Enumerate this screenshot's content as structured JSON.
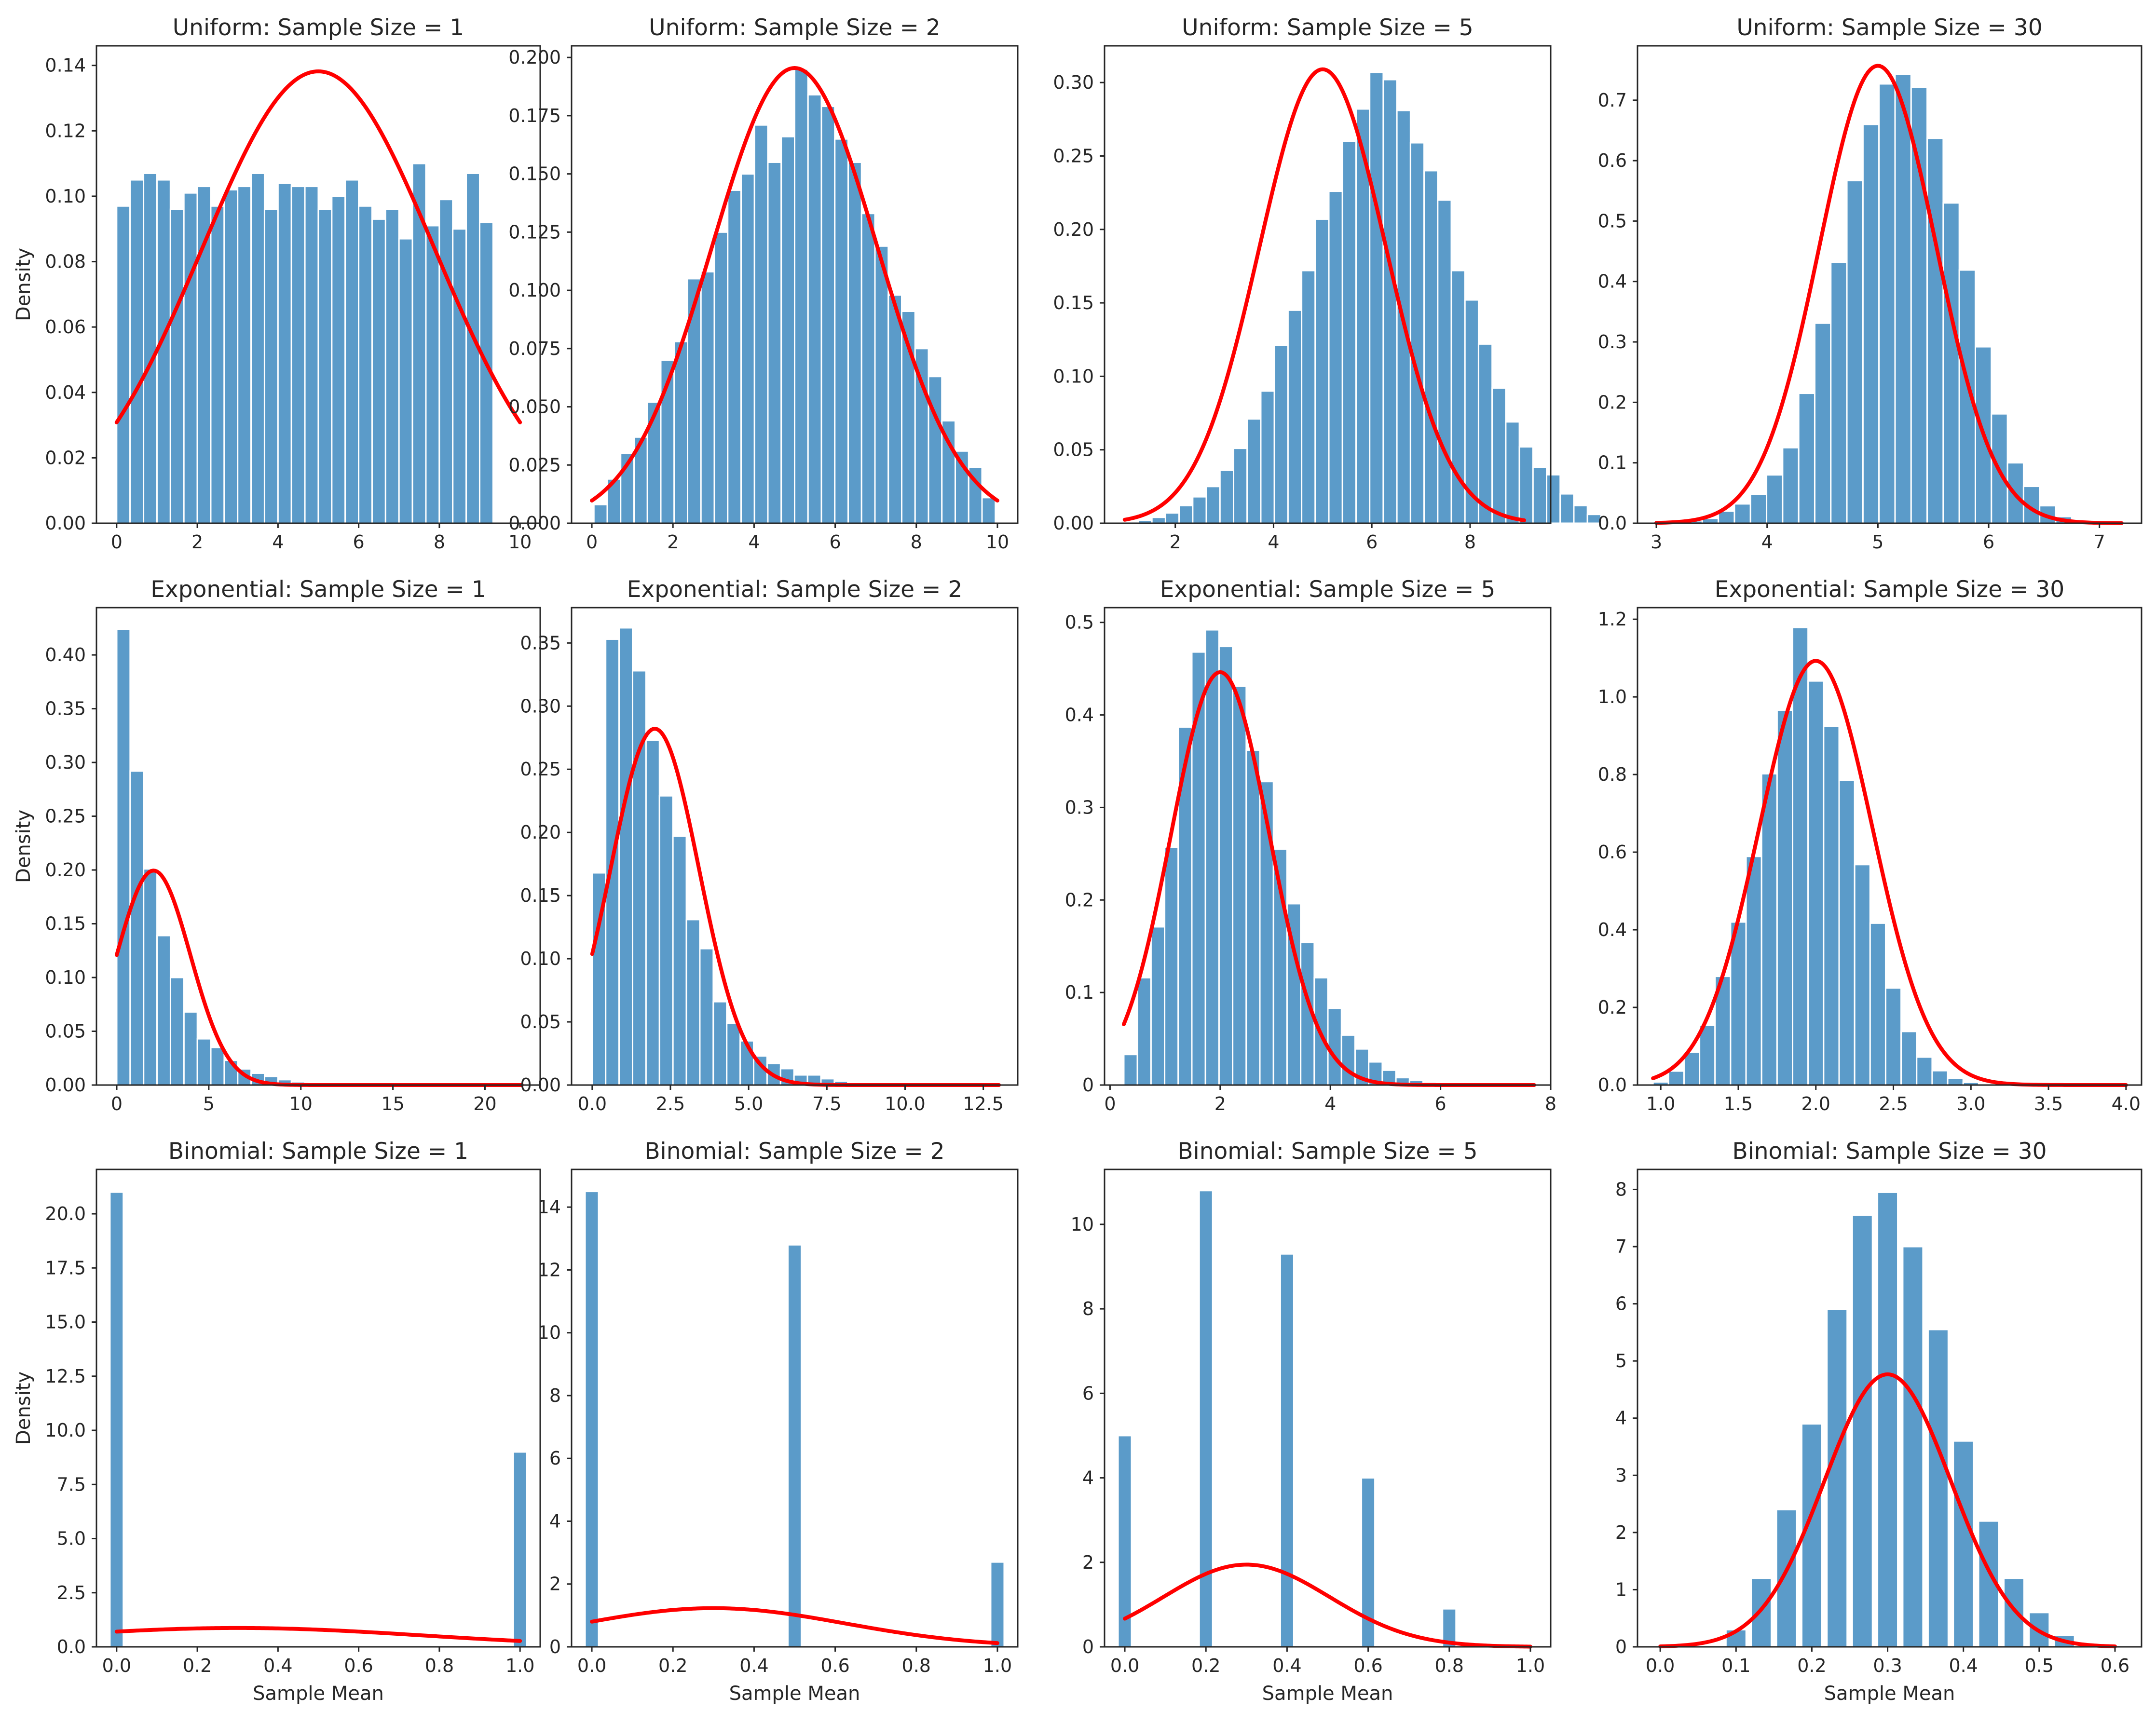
{
  "colors": {
    "bar": "#5b9bc9",
    "curve": "#ff0000",
    "frame": "#262626",
    "background": "#ffffff"
  },
  "chart_data": [
    {
      "type": "bar",
      "title": "Uniform: Sample Size = 1",
      "xlabel": "",
      "ylabel": "Density",
      "xlim": [
        -0.5,
        10.5
      ],
      "ylim": [
        0,
        0.146
      ],
      "xticks": [
        0,
        2,
        4,
        6,
        8,
        10
      ],
      "xtick_labels": [
        "0",
        "2",
        "4",
        "6",
        "8",
        "10"
      ],
      "yticks": [
        0,
        0.02,
        0.04,
        0.06,
        0.08,
        0.1,
        0.12,
        0.14
      ],
      "ytick_labels": [
        "0.00",
        "0.02",
        "0.04",
        "0.06",
        "0.08",
        "0.10",
        "0.12",
        "0.14"
      ],
      "bins": {
        "start": 0,
        "width": 0.3333,
        "values": [
          0.097,
          0.105,
          0.107,
          0.105,
          0.096,
          0.101,
          0.103,
          0.097,
          0.102,
          0.103,
          0.107,
          0.096,
          0.104,
          0.103,
          0.103,
          0.096,
          0.1,
          0.105,
          0.097,
          0.093,
          0.096,
          0.087,
          0.11,
          0.091,
          0.099,
          0.09,
          0.107,
          0.092
        ]
      },
      "normal_curve": {
        "mean": 5,
        "sd": 2.887,
        "x_range": [
          0,
          10
        ]
      }
    },
    {
      "type": "bar",
      "title": "Uniform: Sample Size = 2",
      "xlabel": "",
      "ylabel": "",
      "xlim": [
        -0.5,
        10.5
      ],
      "ylim": [
        0,
        0.205
      ],
      "xticks": [
        0,
        2,
        4,
        6,
        8,
        10
      ],
      "xtick_labels": [
        "0",
        "2",
        "4",
        "6",
        "8",
        "10"
      ],
      "yticks": [
        0,
        0.025,
        0.05,
        0.075,
        0.1,
        0.125,
        0.15,
        0.175,
        0.2
      ],
      "ytick_labels": [
        "0.000",
        "0.025",
        "0.050",
        "0.075",
        "0.100",
        "0.125",
        "0.150",
        "0.175",
        "0.200"
      ],
      "bins": {
        "start": 0.05,
        "width": 0.33,
        "values": [
          0.008,
          0.019,
          0.03,
          0.037,
          0.052,
          0.07,
          0.078,
          0.105,
          0.108,
          0.125,
          0.143,
          0.15,
          0.171,
          0.155,
          0.166,
          0.195,
          0.184,
          0.179,
          0.165,
          0.155,
          0.133,
          0.119,
          0.098,
          0.091,
          0.075,
          0.063,
          0.044,
          0.031,
          0.024,
          0.011
        ]
      },
      "normal_curve": {
        "mean": 5,
        "sd": 2.041,
        "x_range": [
          0,
          10
        ]
      }
    },
    {
      "type": "bar",
      "title": "Uniform: Sample Size = 5",
      "xlabel": "",
      "ylabel": "",
      "xlim": [
        0.56,
        9.64
      ],
      "ylim": [
        0,
        0.325
      ],
      "xticks": [
        2,
        4,
        6,
        8
      ],
      "xtick_labels": [
        "2",
        "4",
        "6",
        "8"
      ],
      "yticks": [
        0,
        0.05,
        0.1,
        0.15,
        0.2,
        0.25,
        0.3
      ],
      "ytick_labels": [
        "0.00",
        "0.05",
        "0.10",
        "0.15",
        "0.20",
        "0.25",
        "0.30"
      ],
      "bins": {
        "start": 0.97,
        "width": 0.277,
        "values": [
          0.001,
          0.002,
          0.004,
          0.007,
          0.012,
          0.018,
          0.025,
          0.036,
          0.051,
          0.071,
          0.09,
          0.121,
          0.145,
          0.172,
          0.207,
          0.226,
          0.26,
          0.282,
          0.307,
          0.302,
          0.281,
          0.259,
          0.24,
          0.22,
          0.172,
          0.152,
          0.122,
          0.092,
          0.069,
          0.052,
          0.038,
          0.033,
          0.02,
          0.012,
          0.006
        ]
      },
      "normal_curve": {
        "mean": 5,
        "sd": 1.291,
        "x_range": [
          0.97,
          9.1
        ]
      }
    },
    {
      "type": "bar",
      "title": "Uniform: Sample Size = 30",
      "xlabel": "",
      "ylabel": "",
      "xlim": [
        2.83,
        7.38
      ],
      "ylim": [
        0,
        0.79
      ],
      "xticks": [
        3,
        4,
        5,
        6,
        7
      ],
      "xtick_labels": [
        "3",
        "4",
        "5",
        "6",
        "7"
      ],
      "yticks": [
        0,
        0.1,
        0.2,
        0.3,
        0.4,
        0.5,
        0.6,
        0.7
      ],
      "ytick_labels": [
        "0.0",
        "0.1",
        "0.2",
        "0.3",
        "0.4",
        "0.5",
        "0.6",
        "0.7"
      ],
      "bins": {
        "start": 2.98,
        "width": 0.145,
        "values": [
          0.001,
          0.002,
          0.004,
          0.008,
          0.02,
          0.032,
          0.048,
          0.08,
          0.125,
          0.215,
          0.331,
          0.432,
          0.567,
          0.66,
          0.727,
          0.743,
          0.721,
          0.637,
          0.53,
          0.419,
          0.292,
          0.181,
          0.1,
          0.061,
          0.029,
          0.011,
          0.005,
          0.002,
          0.001,
          0.0
        ]
      },
      "normal_curve": {
        "mean": 5,
        "sd": 0.527,
        "x_range": [
          3.0,
          7.2
        ]
      }
    },
    {
      "type": "bar",
      "title": "Exponential: Sample Size = 1",
      "xlabel": "",
      "ylabel": "Density",
      "xlim": [
        -1.1,
        23.0
      ],
      "ylim": [
        0,
        0.444
      ],
      "xticks": [
        0,
        5,
        10,
        15,
        20
      ],
      "xtick_labels": [
        "0",
        "5",
        "10",
        "15",
        "20"
      ],
      "yticks": [
        0,
        0.05,
        0.1,
        0.15,
        0.2,
        0.25,
        0.3,
        0.35,
        0.4
      ],
      "ytick_labels": [
        "0.00",
        "0.05",
        "0.10",
        "0.15",
        "0.20",
        "0.25",
        "0.30",
        "0.35",
        "0.40"
      ],
      "bins": {
        "start": 0,
        "width": 0.73,
        "values": [
          0.424,
          0.292,
          0.201,
          0.139,
          0.1,
          0.068,
          0.043,
          0.035,
          0.023,
          0.015,
          0.011,
          0.008,
          0.005,
          0.003,
          0.002,
          0.001,
          0.001,
          0.001,
          0.0,
          0.0,
          0.0,
          0.0,
          0.0,
          0.0,
          0.0,
          0.0,
          0.0,
          0.0,
          0.0,
          0.0
        ]
      },
      "normal_curve": {
        "mean": 2,
        "sd": 2,
        "x_range": [
          0,
          22
        ]
      }
    },
    {
      "type": "bar",
      "title": "Exponential: Sample Size = 2",
      "xlabel": "",
      "ylabel": "",
      "xlim": [
        -0.66,
        13.6
      ],
      "ylim": [
        0,
        0.378
      ],
      "xticks": [
        0,
        2.5,
        5,
        7.5,
        10,
        12.5
      ],
      "xtick_labels": [
        "0.0",
        "2.5",
        "5.0",
        "7.5",
        "10.0",
        "12.5"
      ],
      "yticks": [
        0,
        0.05,
        0.1,
        0.15,
        0.2,
        0.25,
        0.3,
        0.35
      ],
      "ytick_labels": [
        "0.00",
        "0.05",
        "0.10",
        "0.15",
        "0.20",
        "0.25",
        "0.30",
        "0.35"
      ],
      "bins": {
        "start": 0,
        "width": 0.43,
        "values": [
          0.168,
          0.353,
          0.362,
          0.328,
          0.273,
          0.229,
          0.197,
          0.131,
          0.108,
          0.066,
          0.049,
          0.035,
          0.023,
          0.017,
          0.013,
          0.008,
          0.008,
          0.005,
          0.003,
          0.002,
          0.002,
          0.001,
          0.001,
          0.001,
          0.0,
          0.0,
          0.0,
          0.0,
          0.0,
          0.0
        ]
      },
      "normal_curve": {
        "mean": 2,
        "sd": 1.414,
        "x_range": [
          0,
          13
        ]
      }
    },
    {
      "type": "bar",
      "title": "Exponential: Sample Size = 5",
      "xlabel": "",
      "ylabel": "",
      "xlim": [
        -0.1,
        8.0
      ],
      "ylim": [
        0,
        0.516
      ],
      "xticks": [
        0,
        2,
        4,
        6,
        8
      ],
      "xtick_labels": [
        "0",
        "2",
        "4",
        "6",
        "8"
      ],
      "yticks": [
        0,
        0.1,
        0.2,
        0.3,
        0.4,
        0.5
      ],
      "ytick_labels": [
        "0",
        "0.1",
        "0.2",
        "0.3",
        "0.4",
        "0.5"
      ],
      "bins": {
        "start": 0.25,
        "width": 0.247,
        "values": [
          0.033,
          0.116,
          0.171,
          0.257,
          0.387,
          0.468,
          0.492,
          0.474,
          0.431,
          0.362,
          0.328,
          0.255,
          0.196,
          0.154,
          0.116,
          0.083,
          0.054,
          0.039,
          0.025,
          0.016,
          0.008,
          0.005,
          0.003,
          0.002,
          0.001,
          0.0,
          0.0,
          0.0,
          0.0,
          0.0
        ]
      },
      "normal_curve": {
        "mean": 2,
        "sd": 0.894,
        "x_range": [
          0.25,
          7.7
        ]
      }
    },
    {
      "type": "bar",
      "title": "Exponential: Sample Size = 30",
      "xlabel": "",
      "ylabel": "",
      "xlim": [
        0.85,
        4.1
      ],
      "ylim": [
        0,
        1.23
      ],
      "xticks": [
        1,
        1.5,
        2,
        2.5,
        3,
        3.5,
        4
      ],
      "xtick_labels": [
        "1.0",
        "1.5",
        "2.0",
        "2.5",
        "3.0",
        "3.5",
        "4.0"
      ],
      "yticks": [
        0,
        0.2,
        0.4,
        0.6,
        0.8,
        1.0,
        1.2
      ],
      "ytick_labels": [
        "0.0",
        "0.2",
        "0.4",
        "0.6",
        "0.8",
        "1.0",
        "1.2"
      ],
      "bins": {
        "start": 0.95,
        "width": 0.1,
        "values": [
          0.008,
          0.036,
          0.085,
          0.154,
          0.28,
          0.42,
          0.589,
          0.802,
          0.966,
          1.179,
          1.041,
          0.924,
          0.785,
          0.568,
          0.417,
          0.25,
          0.138,
          0.072,
          0.037,
          0.017,
          0.007,
          0.003,
          0.002,
          0.001,
          0.0,
          0.0,
          0.0,
          0.0,
          0.0,
          0.0
        ]
      },
      "normal_curve": {
        "mean": 2,
        "sd": 0.365,
        "x_range": [
          0.95,
          4.0
        ]
      }
    },
    {
      "type": "bar",
      "title": "Binomial: Sample Size = 1",
      "xlabel": "Sample Mean",
      "ylabel": "Density",
      "xlim": [
        -0.05,
        1.05
      ],
      "ylim": [
        0,
        22.05
      ],
      "xticks": [
        0,
        0.2,
        0.4,
        0.6,
        0.8,
        1.0
      ],
      "xtick_labels": [
        "0.0",
        "0.2",
        "0.4",
        "0.6",
        "0.8",
        "1.0"
      ],
      "yticks": [
        0,
        2.5,
        5,
        7.5,
        10,
        12.5,
        15,
        17.5,
        20
      ],
      "ytick_labels": [
        "0.0",
        "2.5",
        "5.0",
        "7.5",
        "10.0",
        "12.5",
        "15.0",
        "17.5",
        "20.0"
      ],
      "bars": [
        {
          "x": 0.0,
          "value": 21.0
        },
        {
          "x": 1.0,
          "value": 9.0
        }
      ],
      "bar_width": 0.0333,
      "normal_curve": {
        "mean": 0.3,
        "sd": 0.458,
        "x_range": [
          0,
          1
        ]
      }
    },
    {
      "type": "bar",
      "title": "Binomial: Sample Size = 2",
      "xlabel": "Sample Mean",
      "ylabel": "",
      "xlim": [
        -0.05,
        1.05
      ],
      "ylim": [
        0,
        15.2
      ],
      "xticks": [
        0,
        0.2,
        0.4,
        0.6,
        0.8,
        1.0
      ],
      "xtick_labels": [
        "0.0",
        "0.2",
        "0.4",
        "0.6",
        "0.8",
        "1.0"
      ],
      "yticks": [
        0,
        2,
        4,
        6,
        8,
        10,
        12,
        14
      ],
      "ytick_labels": [
        "0",
        "2",
        "4",
        "6",
        "8",
        "10",
        "12",
        "14"
      ],
      "bars": [
        {
          "x": 0.0,
          "value": 14.5
        },
        {
          "x": 0.5,
          "value": 12.8
        },
        {
          "x": 1.0,
          "value": 2.7
        }
      ],
      "bar_width": 0.0333,
      "normal_curve": {
        "mean": 0.3,
        "sd": 0.324,
        "x_range": [
          0,
          1
        ]
      }
    },
    {
      "type": "bar",
      "title": "Binomial: Sample Size = 5",
      "xlabel": "Sample Mean",
      "ylabel": "",
      "xlim": [
        -0.05,
        1.05
      ],
      "ylim": [
        0,
        11.3
      ],
      "xticks": [
        0,
        0.2,
        0.4,
        0.6,
        0.8,
        1.0
      ],
      "xtick_labels": [
        "0.0",
        "0.2",
        "0.4",
        "0.6",
        "0.8",
        "1.0"
      ],
      "yticks": [
        0,
        2,
        4,
        6,
        8,
        10
      ],
      "ytick_labels": [
        "0",
        "2",
        "4",
        "6",
        "8",
        "10"
      ],
      "bars": [
        {
          "x": 0.0,
          "value": 5.0
        },
        {
          "x": 0.2,
          "value": 10.8
        },
        {
          "x": 0.4,
          "value": 9.3
        },
        {
          "x": 0.6,
          "value": 4.0
        },
        {
          "x": 0.8,
          "value": 0.9
        }
      ],
      "bar_width": 0.0333,
      "normal_curve": {
        "mean": 0.3,
        "sd": 0.205,
        "x_range": [
          0,
          1
        ]
      }
    },
    {
      "type": "bar",
      "title": "Binomial: Sample Size = 30",
      "xlabel": "Sample Mean",
      "ylabel": "",
      "xlim": [
        -0.03,
        0.635
      ],
      "ylim": [
        0,
        8.35
      ],
      "xticks": [
        0,
        0.1,
        0.2,
        0.3,
        0.4,
        0.5,
        0.6
      ],
      "xtick_labels": [
        "0.0",
        "0.1",
        "0.2",
        "0.3",
        "0.4",
        "0.5",
        "0.6"
      ],
      "yticks": [
        0,
        1,
        2,
        3,
        4,
        5,
        6,
        7,
        8
      ],
      "ytick_labels": [
        "0",
        "1",
        "2",
        "3",
        "4",
        "5",
        "6",
        "7",
        "8"
      ],
      "bars": [
        {
          "x": 0.1,
          "value": 0.3
        },
        {
          "x": 0.1333,
          "value": 1.2
        },
        {
          "x": 0.1667,
          "value": 2.4
        },
        {
          "x": 0.2,
          "value": 3.9
        },
        {
          "x": 0.2333,
          "value": 5.9
        },
        {
          "x": 0.2667,
          "value": 7.55
        },
        {
          "x": 0.3,
          "value": 7.95
        },
        {
          "x": 0.3333,
          "value": 7.0
        },
        {
          "x": 0.3667,
          "value": 5.55
        },
        {
          "x": 0.4,
          "value": 3.6
        },
        {
          "x": 0.4333,
          "value": 2.2
        },
        {
          "x": 0.4667,
          "value": 1.2
        },
        {
          "x": 0.5,
          "value": 0.6
        },
        {
          "x": 0.5333,
          "value": 0.2
        },
        {
          "x": 0.5667,
          "value": 0.05
        }
      ],
      "bar_width": 0.0267,
      "normal_curve": {
        "mean": 0.3,
        "sd": 0.0837,
        "x_range": [
          0,
          0.6
        ]
      }
    }
  ]
}
